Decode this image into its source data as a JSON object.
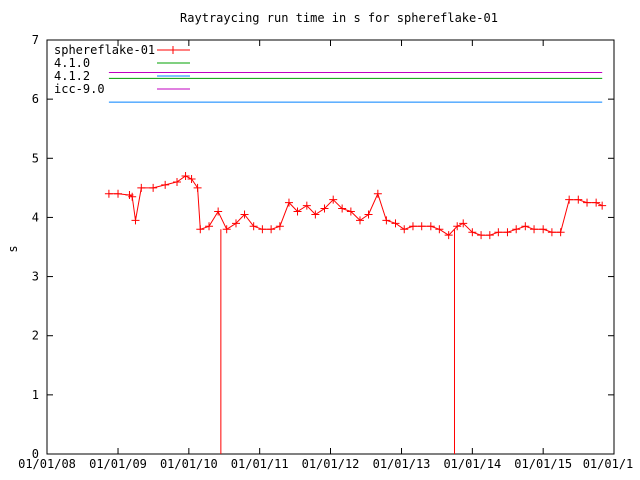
{
  "chart_data": {
    "type": "line",
    "title": "Raytraycing run time in s for sphereflake-01",
    "xlabel": "",
    "ylabel": "s",
    "ylim": [
      0,
      7
    ],
    "yticks": [
      "0",
      "1",
      "2",
      "3",
      "4",
      "5",
      "6",
      "7"
    ],
    "xlim": [
      "2008-01-01",
      "2016-01-01"
    ],
    "xticks": [
      "01/01/08",
      "01/01/09",
      "01/01/10",
      "01/01/11",
      "01/01/12",
      "01/01/13",
      "01/01/14",
      "01/01/15",
      "01/01/16"
    ],
    "xtick_labels": [
      "01/01/08",
      "01/01/09",
      "01/01/10",
      "01/01/11",
      "01/01/12",
      "01/01/13",
      "01/01/14",
      "01/01/15",
      "01/01/1"
    ],
    "grid": false,
    "legend_position": "top-left",
    "series": [
      {
        "name": "sphereflake-01",
        "color": "#ff0000",
        "marker": "plus",
        "x": [
          "2008-11-15",
          "2009-01-01",
          "2009-03-01",
          "2009-03-15",
          "2009-04-01",
          "2009-05-01",
          "2009-07-01",
          "2009-09-01",
          "2009-11-01",
          "2009-12-15",
          "2010-01-15",
          "2010-02-15",
          "2010-03-01",
          "2010-04-15",
          "2010-06-01",
          "2010-07-15",
          "2010-09-01",
          "2010-10-15",
          "2010-12-01",
          "2011-01-15",
          "2011-03-01",
          "2011-04-15",
          "2011-06-01",
          "2011-07-15",
          "2011-09-01",
          "2011-10-15",
          "2011-12-01",
          "2012-01-15",
          "2012-03-01",
          "2012-04-15",
          "2012-06-01",
          "2012-07-15",
          "2012-09-01",
          "2012-10-15",
          "2012-12-01",
          "2013-01-15",
          "2013-03-01",
          "2013-04-15",
          "2013-06-01",
          "2013-07-15",
          "2013-09-01",
          "2013-10-15",
          "2013-11-15",
          "2014-01-01",
          "2014-02-15",
          "2014-04-01",
          "2014-05-15",
          "2014-07-01",
          "2014-08-15",
          "2014-10-01",
          "2014-11-15",
          "2015-01-01",
          "2015-02-15",
          "2015-04-01",
          "2015-05-15",
          "2015-07-01",
          "2015-08-15",
          "2015-10-01",
          "2015-11-01"
        ],
        "y": [
          4.4,
          4.4,
          4.38,
          4.35,
          3.95,
          4.5,
          4.5,
          4.55,
          4.6,
          4.7,
          4.65,
          4.5,
          3.8,
          3.85,
          4.1,
          3.8,
          3.9,
          4.05,
          3.85,
          3.8,
          3.8,
          3.85,
          4.25,
          4.1,
          4.2,
          4.05,
          4.15,
          4.3,
          4.15,
          4.1,
          3.95,
          4.05,
          4.4,
          3.95,
          3.9,
          3.8,
          3.85,
          3.85,
          3.85,
          3.8,
          3.7,
          3.85,
          3.9,
          3.75,
          3.7,
          3.7,
          3.75,
          3.75,
          3.8,
          3.85,
          3.8,
          3.8,
          3.75,
          3.75,
          4.3,
          4.3,
          4.25,
          4.25,
          4.2
        ],
        "drops_to_zero": [
          "2010-06-15",
          "2013-10-01"
        ]
      },
      {
        "name": "4.1.0",
        "color": "#00a000",
        "x": [
          "2008-11-15",
          "2015-11-01"
        ],
        "y": [
          6.35,
          6.35
        ]
      },
      {
        "name": "4.1.2",
        "color": "#0080ff",
        "x": [
          "2008-11-15",
          "2015-11-01"
        ],
        "y": [
          5.95,
          5.95
        ]
      },
      {
        "name": "icc-9.0",
        "color": "#c000c0",
        "x": [
          "2008-11-15",
          "2015-11-01"
        ],
        "y": [
          6.45,
          6.45
        ]
      }
    ]
  }
}
